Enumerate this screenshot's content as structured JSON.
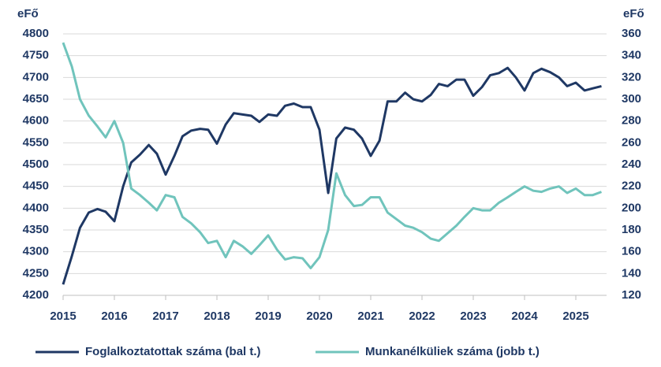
{
  "chart_data": {
    "type": "line",
    "y_label": "eFő",
    "y2_label": "eFő",
    "x": [
      2015,
      2015.17,
      2015.33,
      2015.5,
      2015.67,
      2015.83,
      2016,
      2016.17,
      2016.33,
      2016.5,
      2016.67,
      2016.83,
      2017,
      2017.17,
      2017.33,
      2017.5,
      2017.67,
      2017.83,
      2018,
      2018.17,
      2018.33,
      2018.5,
      2018.67,
      2018.83,
      2019,
      2019.17,
      2019.33,
      2019.5,
      2019.67,
      2019.83,
      2020,
      2020.17,
      2020.33,
      2020.5,
      2020.67,
      2020.83,
      2021,
      2021.17,
      2021.33,
      2021.5,
      2021.67,
      2021.83,
      2022,
      2022.17,
      2022.33,
      2022.5,
      2022.67,
      2022.83,
      2023,
      2023.17,
      2023.33,
      2023.5,
      2023.67,
      2023.83,
      2024,
      2024.17,
      2024.33,
      2024.5,
      2024.67,
      2024.83,
      2025,
      2025.17,
      2025.33,
      2025.5
    ],
    "series": [
      {
        "name": "Foglalkoztatottak száma (bal t.)",
        "color": "#1f3864",
        "axis": "y",
        "values": [
          4225,
          4290,
          4355,
          4390,
          4398,
          4392,
          4370,
          4450,
          4505,
          4523,
          4545,
          4525,
          4477,
          4520,
          4565,
          4578,
          4582,
          4580,
          4548,
          4592,
          4618,
          4615,
          4612,
          4598,
          4615,
          4612,
          4635,
          4640,
          4632,
          4632,
          4580,
          4435,
          4560,
          4585,
          4580,
          4560,
          4520,
          4555,
          4645,
          4645,
          4665,
          4650,
          4645,
          4660,
          4685,
          4680,
          4695,
          4695,
          4658,
          4678,
          4705,
          4710,
          4722,
          4700,
          4670,
          4710,
          4720,
          4712,
          4700,
          4680,
          4688,
          4670,
          4675,
          4680
        ]
      },
      {
        "name": "Munkanélküliek száma (jobb t.)",
        "color": "#70c4bc",
        "axis": "y2",
        "values": [
          352,
          330,
          300,
          285,
          275,
          265,
          280,
          260,
          218,
          212,
          205,
          198,
          212,
          210,
          192,
          186,
          178,
          168,
          170,
          155,
          170,
          165,
          158,
          166,
          175,
          162,
          153,
          155,
          154,
          145,
          155,
          180,
          232,
          212,
          202,
          203,
          210,
          210,
          196,
          190,
          184,
          182,
          178,
          172,
          170,
          177,
          184,
          192,
          200,
          198,
          198,
          205,
          210,
          215,
          220,
          216,
          215,
          218,
          220,
          214,
          218,
          212,
          212,
          215
        ]
      }
    ],
    "xlim": [
      2015,
      2025.6
    ],
    "xticks": [
      2015,
      2016,
      2017,
      2018,
      2019,
      2020,
      2021,
      2022,
      2023,
      2024,
      2025
    ],
    "ylim": [
      4200,
      4800
    ],
    "yticks": [
      4200,
      4250,
      4300,
      4350,
      4400,
      4450,
      4500,
      4550,
      4600,
      4650,
      4700,
      4750,
      4800
    ],
    "y2lim": [
      120,
      360
    ],
    "y2ticks": [
      120,
      140,
      160,
      180,
      200,
      220,
      240,
      260,
      280,
      300,
      320,
      340,
      360
    ],
    "grid": true
  }
}
